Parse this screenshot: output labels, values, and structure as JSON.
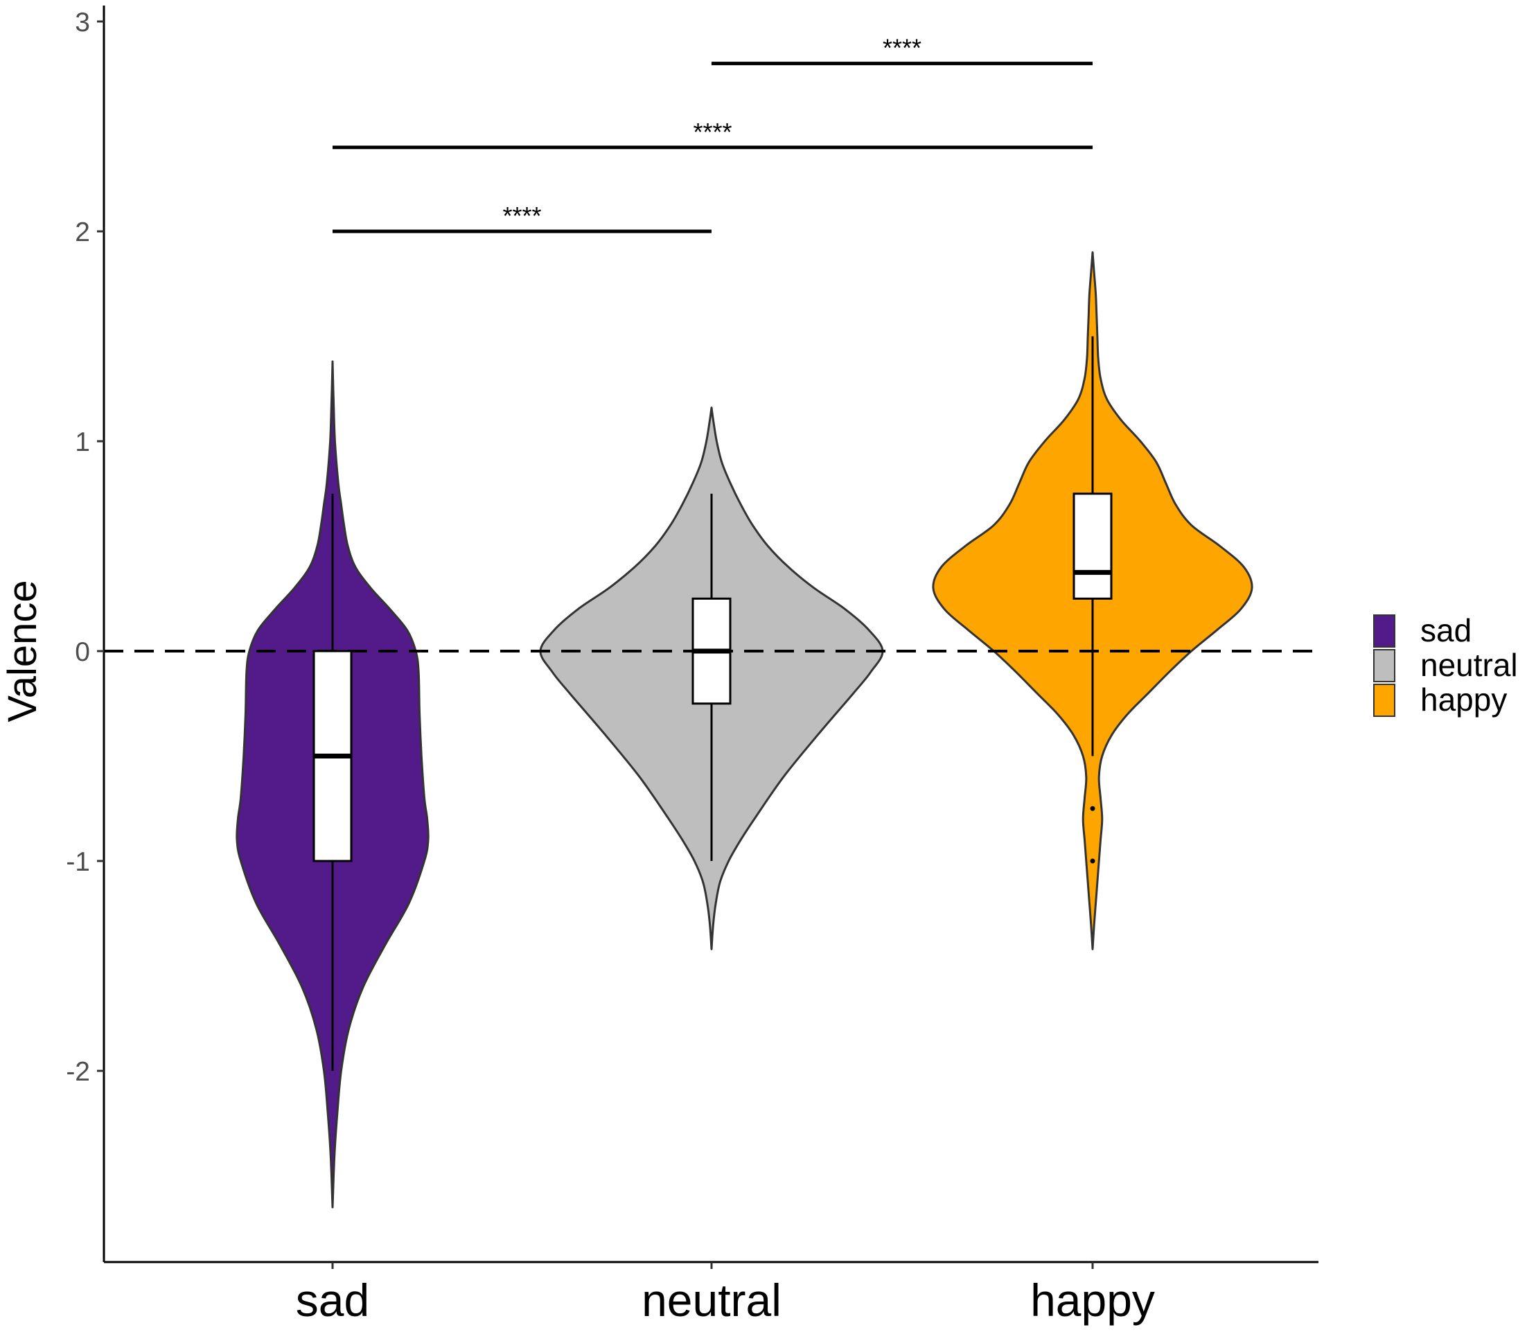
{
  "chart_data": {
    "type": "violin",
    "title": "",
    "xlabel": "",
    "ylabel": "Valence",
    "ylim": [
      -2.8,
      3.0
    ],
    "y_ticks": [
      -2,
      -1,
      0,
      1,
      2,
      3
    ],
    "y_tick_labels": [
      "-2",
      "-1",
      "0",
      "1",
      "2",
      "3"
    ],
    "categories": [
      "sad",
      "neutral",
      "happy"
    ],
    "reference_line": {
      "y": 0,
      "style": "dashed"
    },
    "legend": {
      "position": "right",
      "entries": [
        {
          "label": "sad",
          "color": "#531b8a"
        },
        {
          "label": "neutral",
          "color": "#bebebe"
        },
        {
          "label": "happy",
          "color": "#ffa500"
        }
      ]
    },
    "series": [
      {
        "category": "sad",
        "color": "#531b8a",
        "box": {
          "q1": -1.0,
          "median": -0.5,
          "q3": 0.0,
          "whisker_low": -2.0,
          "whisker_high": 0.75
        },
        "outliers": [],
        "density": [
          [
            -2.65,
            0.0
          ],
          [
            -2.4,
            0.02
          ],
          [
            -2.2,
            0.05
          ],
          [
            -2.0,
            0.09
          ],
          [
            -1.8,
            0.17
          ],
          [
            -1.6,
            0.32
          ],
          [
            -1.4,
            0.55
          ],
          [
            -1.2,
            0.8
          ],
          [
            -1.0,
            0.96
          ],
          [
            -0.9,
            1.0
          ],
          [
            -0.8,
            0.99
          ],
          [
            -0.7,
            0.96
          ],
          [
            -0.5,
            0.93
          ],
          [
            -0.3,
            0.91
          ],
          [
            -0.1,
            0.9
          ],
          [
            0.0,
            0.87
          ],
          [
            0.1,
            0.78
          ],
          [
            0.2,
            0.6
          ],
          [
            0.3,
            0.4
          ],
          [
            0.4,
            0.24
          ],
          [
            0.5,
            0.16
          ],
          [
            0.6,
            0.12
          ],
          [
            0.7,
            0.09
          ],
          [
            0.8,
            0.06
          ],
          [
            1.0,
            0.025
          ],
          [
            1.2,
            0.01
          ],
          [
            1.38,
            0.0
          ]
        ]
      },
      {
        "category": "neutral",
        "color": "#bebebe",
        "box": {
          "q1": -0.25,
          "median": 0.0,
          "q3": 0.25,
          "whisker_low": -1.0,
          "whisker_high": 0.75
        },
        "outliers": [],
        "density": [
          [
            -1.42,
            0.0
          ],
          [
            -1.3,
            0.01
          ],
          [
            -1.2,
            0.025
          ],
          [
            -1.1,
            0.05
          ],
          [
            -1.0,
            0.1
          ],
          [
            -0.9,
            0.17
          ],
          [
            -0.8,
            0.25
          ],
          [
            -0.6,
            0.42
          ],
          [
            -0.4,
            0.62
          ],
          [
            -0.2,
            0.83
          ],
          [
            -0.1,
            0.93
          ],
          [
            0.0,
            1.0
          ],
          [
            0.1,
            0.92
          ],
          [
            0.2,
            0.78
          ],
          [
            0.3,
            0.6
          ],
          [
            0.4,
            0.45
          ],
          [
            0.5,
            0.33
          ],
          [
            0.6,
            0.24
          ],
          [
            0.7,
            0.17
          ],
          [
            0.8,
            0.11
          ],
          [
            0.9,
            0.06
          ],
          [
            1.0,
            0.03
          ],
          [
            1.1,
            0.01
          ],
          [
            1.16,
            0.0
          ]
        ]
      },
      {
        "category": "happy",
        "color": "#ffa500",
        "box": {
          "q1": 0.25,
          "median": 0.375,
          "q3": 0.75,
          "whisker_low": -0.5,
          "whisker_high": 1.5
        },
        "outliers": [
          -0.75,
          -1.0
        ],
        "density": [
          [
            -1.42,
            0.0
          ],
          [
            -1.3,
            0.01
          ],
          [
            -1.2,
            0.02
          ],
          [
            -1.1,
            0.03
          ],
          [
            -1.0,
            0.04
          ],
          [
            -0.9,
            0.05
          ],
          [
            -0.8,
            0.06
          ],
          [
            -0.7,
            0.05
          ],
          [
            -0.6,
            0.04
          ],
          [
            -0.5,
            0.06
          ],
          [
            -0.4,
            0.12
          ],
          [
            -0.3,
            0.22
          ],
          [
            -0.2,
            0.35
          ],
          [
            -0.1,
            0.48
          ],
          [
            0.0,
            0.62
          ],
          [
            0.1,
            0.78
          ],
          [
            0.2,
            0.93
          ],
          [
            0.3,
            1.0
          ],
          [
            0.4,
            0.95
          ],
          [
            0.5,
            0.8
          ],
          [
            0.6,
            0.62
          ],
          [
            0.7,
            0.52
          ],
          [
            0.8,
            0.46
          ],
          [
            0.9,
            0.4
          ],
          [
            1.0,
            0.3
          ],
          [
            1.1,
            0.18
          ],
          [
            1.2,
            0.09
          ],
          [
            1.3,
            0.05
          ],
          [
            1.4,
            0.035
          ],
          [
            1.5,
            0.03
          ],
          [
            1.6,
            0.025
          ],
          [
            1.7,
            0.02
          ],
          [
            1.8,
            0.01
          ],
          [
            1.9,
            0.0
          ]
        ]
      }
    ],
    "significance": [
      {
        "from": "sad",
        "to": "neutral",
        "y": 2.0,
        "label": "****"
      },
      {
        "from": "sad",
        "to": "happy",
        "y": 2.4,
        "label": "****"
      },
      {
        "from": "neutral",
        "to": "happy",
        "y": 2.8,
        "label": "****"
      }
    ]
  }
}
